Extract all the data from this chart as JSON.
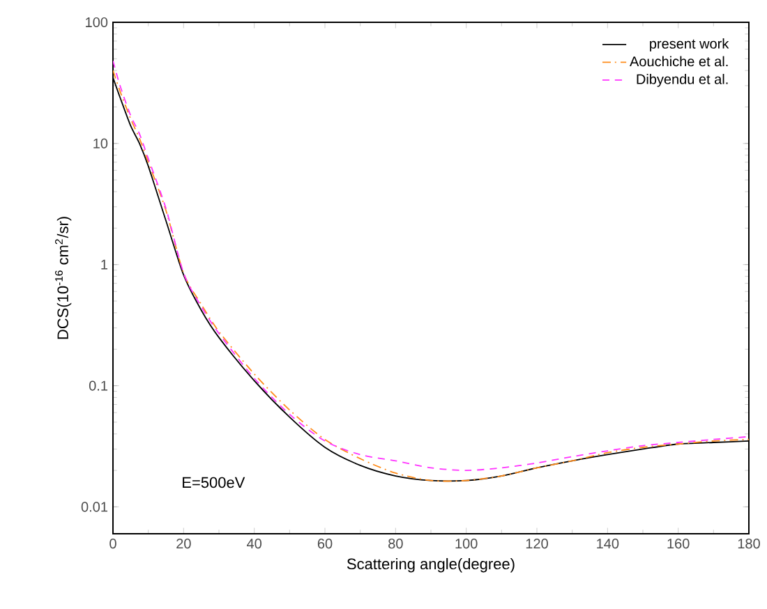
{
  "chart_data": {
    "type": "line",
    "xlabel": "Scattering angle(degree)",
    "ylabel": "DCS(10$^{-16}$ cm$^{2}$/sr)",
    "x": [
      0,
      2,
      5,
      7.5,
      10,
      15,
      20,
      25,
      30,
      40,
      50,
      60,
      70,
      80,
      90,
      100,
      110,
      120,
      130,
      140,
      150,
      160,
      170,
      180
    ],
    "series": [
      {
        "name": "present work",
        "color": "#000000",
        "line_style": "solid",
        "values": [
          35,
          24,
          14,
          10,
          6.5,
          2.3,
          0.82,
          0.42,
          0.25,
          0.11,
          0.055,
          0.031,
          0.022,
          0.018,
          0.0165,
          0.0165,
          0.018,
          0.021,
          0.024,
          0.027,
          0.03,
          0.033,
          0.034,
          0.035
        ]
      },
      {
        "name": "Aouchiche et al.",
        "color": "#ff8c1a",
        "line_style": "dashdot",
        "values": [
          40,
          27,
          16,
          11,
          7,
          2.8,
          0.85,
          0.47,
          0.28,
          0.125,
          0.063,
          0.036,
          0.025,
          0.019,
          0.0165,
          0.0165,
          0.018,
          0.021,
          0.024,
          0.028,
          0.031,
          0.033,
          0.035,
          0.036
        ]
      },
      {
        "name": "Dibyendu et al.",
        "color": "#ff33ff",
        "line_style": "dashed",
        "values": [
          48,
          30,
          17,
          12,
          7.5,
          2.9,
          0.85,
          0.45,
          0.27,
          0.115,
          0.058,
          0.035,
          0.027,
          0.024,
          0.021,
          0.02,
          0.021,
          0.023,
          0.026,
          0.029,
          0.032,
          0.034,
          0.036,
          0.038
        ]
      }
    ],
    "xlim": [
      0,
      180
    ],
    "xticks": [
      0,
      20,
      40,
      60,
      80,
      100,
      120,
      140,
      160,
      180
    ],
    "ylim": [
      0.006,
      100
    ],
    "yticks": [
      0.01,
      0.1,
      1,
      10,
      100
    ],
    "log": "y",
    "grid": false,
    "legend": "top right",
    "annotations": [
      "E=500eV"
    ]
  }
}
